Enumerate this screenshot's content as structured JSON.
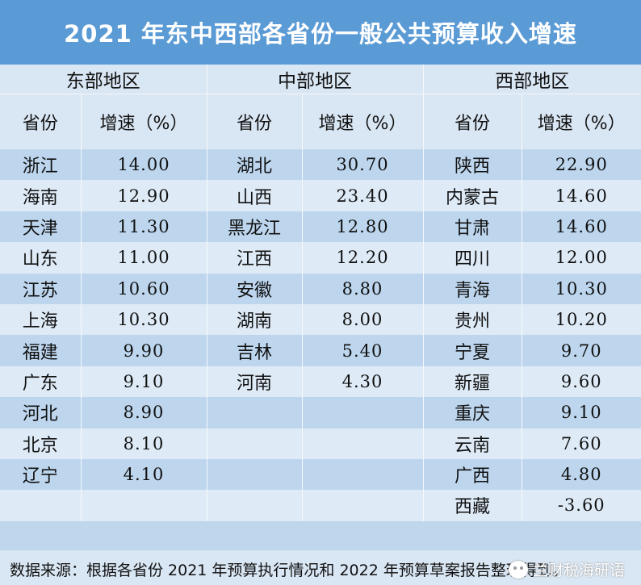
{
  "title": "2021 年东中西部各省份一般公共预算收入增速",
  "regions": [
    "东部地区",
    "中部地区",
    "西部地区"
  ],
  "column_headers": {
    "province": "省份",
    "growth": "增速（%）"
  },
  "rows": [
    [
      {
        "p": "浙江",
        "v": "14.00"
      },
      {
        "p": "湖北",
        "v": "30.70"
      },
      {
        "p": "陕西",
        "v": "22.90"
      }
    ],
    [
      {
        "p": "海南",
        "v": "12.90"
      },
      {
        "p": "山西",
        "v": "23.40"
      },
      {
        "p": "内蒙古",
        "v": "14.60"
      }
    ],
    [
      {
        "p": "天津",
        "v": "11.30"
      },
      {
        "p": "黑龙江",
        "v": "12.80"
      },
      {
        "p": "甘肃",
        "v": "14.60"
      }
    ],
    [
      {
        "p": "山东",
        "v": "11.00"
      },
      {
        "p": "江西",
        "v": "12.20"
      },
      {
        "p": "四川",
        "v": "12.00"
      }
    ],
    [
      {
        "p": "江苏",
        "v": "10.60"
      },
      {
        "p": "安徽",
        "v": "8.80"
      },
      {
        "p": "青海",
        "v": "10.30"
      }
    ],
    [
      {
        "p": "上海",
        "v": "10.30"
      },
      {
        "p": "湖南",
        "v": "8.00"
      },
      {
        "p": "贵州",
        "v": "10.20"
      }
    ],
    [
      {
        "p": "福建",
        "v": "9.90"
      },
      {
        "p": "吉林",
        "v": "5.40"
      },
      {
        "p": "宁夏",
        "v": "9.70"
      }
    ],
    [
      {
        "p": "广东",
        "v": "9.10"
      },
      {
        "p": "河南",
        "v": "4.30"
      },
      {
        "p": "新疆",
        "v": "9.60"
      }
    ],
    [
      {
        "p": "河北",
        "v": "8.90"
      },
      {
        "p": "",
        "v": ""
      },
      {
        "p": "重庆",
        "v": "9.10"
      }
    ],
    [
      {
        "p": "北京",
        "v": "8.10"
      },
      {
        "p": "",
        "v": ""
      },
      {
        "p": "云南",
        "v": "7.60"
      }
    ],
    [
      {
        "p": "辽宁",
        "v": "4.10"
      },
      {
        "p": "",
        "v": ""
      },
      {
        "p": "广西",
        "v": "4.80"
      }
    ],
    [
      {
        "p": "",
        "v": ""
      },
      {
        "p": "",
        "v": ""
      },
      {
        "p": "西藏",
        "v": "-3.60"
      }
    ]
  ],
  "footer": {
    "source": "数据来源：根据各省份 2021 年预算执行情况和 2022 年预算草案报告整理得到。",
    "watermark": "兰财税海研语",
    "watermark_icon": "wechat-icon"
  }
}
